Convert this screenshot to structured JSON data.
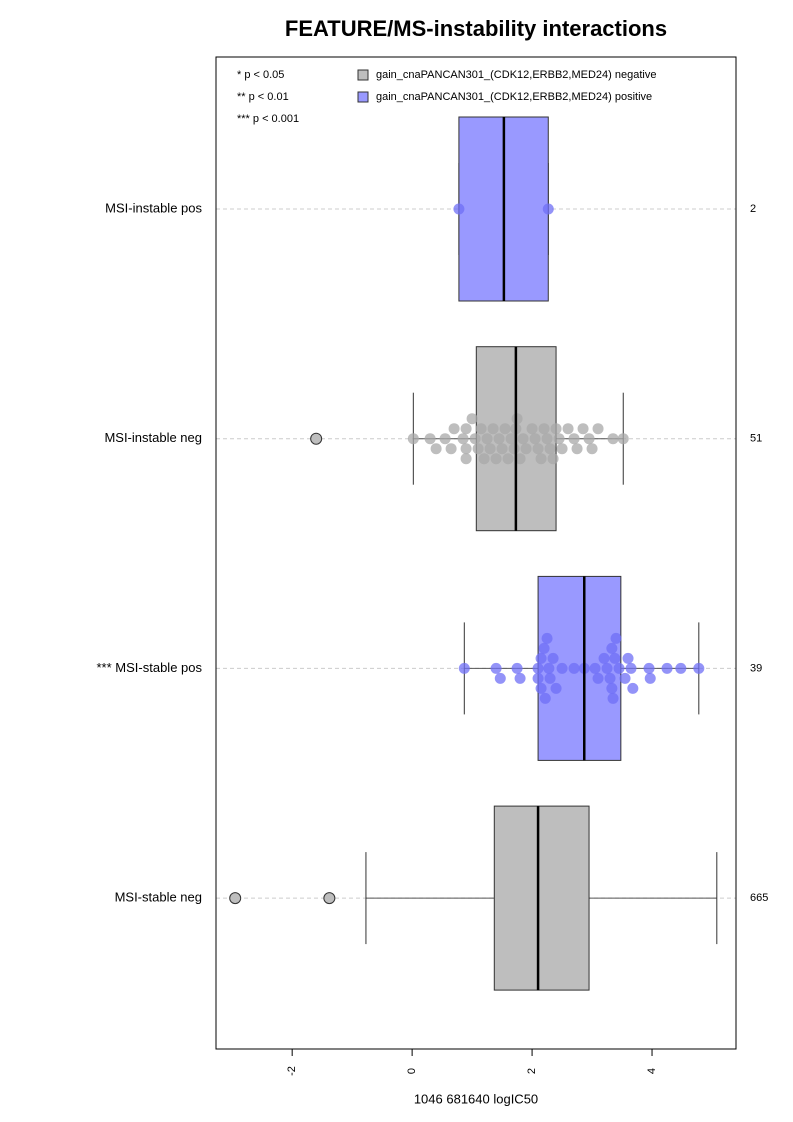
{
  "chart_data": {
    "type": "boxplot",
    "title": "FEATURE/MS-instability interactions",
    "xlabel": "1046 681640 logIC50",
    "xlim": [
      -3.27,
      5.4
    ],
    "xticks": [
      -2,
      0,
      2,
      4
    ],
    "grid": true,
    "notes": [
      "* p < 0.05",
      "** p < 0.01",
      "*** p < 0.001"
    ],
    "legend": [
      {
        "name": "gain_cnaPANCAN301_(CDK12,ERBB2,MED24) negative",
        "color": "#bebebe"
      },
      {
        "name": "gain_cnaPANCAN301_(CDK12,ERBB2,MED24) positive",
        "color": "#9999ff"
      }
    ],
    "groups": [
      {
        "name": "MSI-instable pos",
        "n": 2,
        "color": "#9999ff",
        "point_color": "#6f6ff5",
        "whisker_low": 0.78,
        "q1": 0.78,
        "median": 1.53,
        "q3": 2.27,
        "whisker_high": 2.27,
        "outliers": [],
        "points": [
          0.78,
          2.27
        ]
      },
      {
        "name": "MSI-instable neg",
        "n": 51,
        "color": "#bebebe",
        "point_color": "#a8a8a8",
        "whisker_low": 0.02,
        "q1": 1.07,
        "median": 1.73,
        "q3": 2.4,
        "whisker_high": 3.52,
        "outliers": [
          -1.6
        ],
        "points": [
          0.02,
          0.3,
          0.4,
          0.55,
          0.65,
          0.7,
          0.85,
          0.9,
          0.9,
          1.0,
          1.05,
          1.1,
          1.15,
          1.2,
          1.3,
          1.35,
          1.4,
          1.45,
          1.5,
          1.55,
          1.6,
          1.7,
          1.73,
          1.75,
          1.8,
          1.85,
          1.9,
          2.0,
          2.05,
          2.1,
          2.15,
          2.2,
          2.25,
          2.3,
          2.35,
          2.4,
          2.5,
          2.6,
          2.7,
          2.75,
          2.85,
          2.95,
          3.0,
          3.1,
          3.35,
          3.52,
          0.9,
          1.25,
          1.65,
          2.45
        ]
      },
      {
        "name": "*** MSI-stable pos",
        "n": 39,
        "color": "#9999ff",
        "point_color": "#6f6ff5",
        "whisker_low": 0.87,
        "q1": 2.1,
        "median": 2.87,
        "q3": 3.48,
        "whisker_high": 4.78,
        "outliers": [],
        "points": [
          0.87,
          1.4,
          1.47,
          1.75,
          1.8,
          2.1,
          2.15,
          2.2,
          2.25,
          2.3,
          2.4,
          2.7,
          2.87,
          3.05,
          3.1,
          3.2,
          3.25,
          3.33,
          3.33,
          3.38,
          3.45,
          3.55,
          3.65,
          3.68,
          3.95,
          3.97,
          4.25,
          4.48,
          4.78,
          2.1,
          2.15,
          2.22,
          2.28,
          2.35,
          3.3,
          3.35,
          3.4,
          3.6,
          2.5
        ]
      },
      {
        "name": "MSI-stable neg",
        "n": 665,
        "color": "#bebebe",
        "point_color": "#a8a8a8",
        "whisker_low": -0.77,
        "q1": 1.37,
        "median": 2.1,
        "q3": 2.95,
        "whisker_high": 5.08,
        "outliers": [
          -2.95,
          -1.38
        ],
        "points": []
      }
    ]
  }
}
